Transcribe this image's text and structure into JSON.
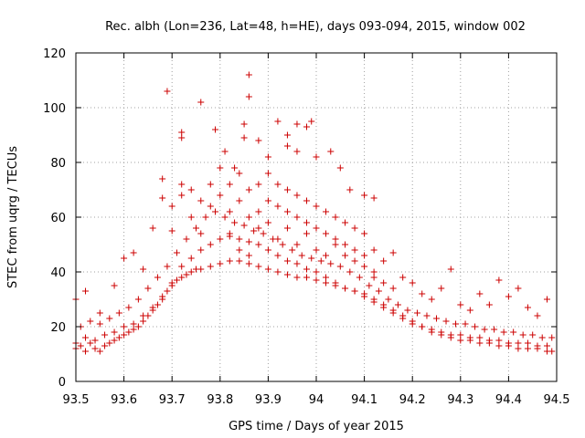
{
  "chart_data": {
    "type": "scatter",
    "title": "Rec. albh (Lon=236, Lat=48, h=HE), days 093-094, 2015, window 002",
    "xlabel": "GPS time / Days of year 2015",
    "ylabel": "STEC from uqrg / TECUs",
    "xlim": [
      93.5,
      94.5
    ],
    "ylim": [
      0,
      120
    ],
    "xticks": [
      "93.5",
      "93.6",
      "93.7",
      "93.8",
      "93.9",
      "94",
      "94.1",
      "94.2",
      "94.3",
      "94.4",
      "94.5"
    ],
    "yticks": [
      "0",
      "20",
      "40",
      "60",
      "80",
      "100",
      "120"
    ],
    "grid": true,
    "marker": "+",
    "marker_color": "#cc0000",
    "legend": "none",
    "series": [
      {
        "name": "STEC",
        "points": [
          [
            93.5,
            12
          ],
          [
            93.51,
            13
          ],
          [
            93.52,
            11
          ],
          [
            93.53,
            14
          ],
          [
            93.54,
            12
          ],
          [
            93.55,
            11
          ],
          [
            93.56,
            13
          ],
          [
            93.57,
            14
          ],
          [
            93.58,
            15
          ],
          [
            93.59,
            16
          ],
          [
            93.6,
            17
          ],
          [
            93.61,
            18
          ],
          [
            93.62,
            19
          ],
          [
            93.63,
            20
          ],
          [
            93.64,
            22
          ],
          [
            93.65,
            24
          ],
          [
            93.66,
            26
          ],
          [
            93.67,
            28
          ],
          [
            93.68,
            30
          ],
          [
            93.69,
            33
          ],
          [
            93.7,
            35
          ],
          [
            93.71,
            37
          ],
          [
            93.72,
            38
          ],
          [
            93.73,
            39
          ],
          [
            93.74,
            40
          ],
          [
            93.75,
            41
          ],
          [
            93.76,
            41
          ],
          [
            93.78,
            42
          ],
          [
            93.8,
            43
          ],
          [
            93.82,
            44
          ],
          [
            93.84,
            44
          ],
          [
            93.86,
            43
          ],
          [
            93.88,
            42
          ],
          [
            93.9,
            41
          ],
          [
            93.92,
            40
          ],
          [
            93.94,
            39
          ],
          [
            93.96,
            38
          ],
          [
            93.98,
            38
          ],
          [
            94.0,
            37
          ],
          [
            94.02,
            36
          ],
          [
            94.04,
            35
          ],
          [
            94.06,
            34
          ],
          [
            94.08,
            33
          ],
          [
            94.1,
            32
          ],
          [
            94.12,
            30
          ],
          [
            94.14,
            28
          ],
          [
            94.16,
            26
          ],
          [
            94.18,
            24
          ],
          [
            94.2,
            22
          ],
          [
            94.22,
            20
          ],
          [
            94.24,
            18
          ],
          [
            94.26,
            17
          ],
          [
            94.28,
            16
          ],
          [
            94.3,
            15
          ],
          [
            94.32,
            15
          ],
          [
            94.34,
            14
          ],
          [
            94.36,
            14
          ],
          [
            94.38,
            13
          ],
          [
            94.4,
            13
          ],
          [
            94.42,
            12
          ],
          [
            94.44,
            12
          ],
          [
            94.46,
            12
          ],
          [
            94.48,
            11
          ],
          [
            94.49,
            11
          ],
          [
            93.5,
            14
          ],
          [
            93.52,
            16
          ],
          [
            93.54,
            15
          ],
          [
            93.56,
            17
          ],
          [
            93.58,
            18
          ],
          [
            93.6,
            20
          ],
          [
            93.62,
            21
          ],
          [
            93.64,
            24
          ],
          [
            93.66,
            27
          ],
          [
            93.68,
            31
          ],
          [
            93.7,
            36
          ],
          [
            93.72,
            42
          ],
          [
            93.74,
            45
          ],
          [
            93.76,
            48
          ],
          [
            93.78,
            50
          ],
          [
            93.8,
            52
          ],
          [
            93.82,
            53
          ],
          [
            93.84,
            52
          ],
          [
            93.86,
            51
          ],
          [
            93.88,
            50
          ],
          [
            93.9,
            48
          ],
          [
            93.92,
            46
          ],
          [
            93.94,
            44
          ],
          [
            93.96,
            43
          ],
          [
            93.98,
            41
          ],
          [
            94.0,
            40
          ],
          [
            94.02,
            38
          ],
          [
            94.04,
            36
          ],
          [
            94.06,
            34
          ],
          [
            94.08,
            33
          ],
          [
            94.1,
            31
          ],
          [
            94.12,
            29
          ],
          [
            94.14,
            27
          ],
          [
            94.16,
            25
          ],
          [
            94.18,
            23
          ],
          [
            94.2,
            21
          ],
          [
            94.22,
            20
          ],
          [
            94.24,
            19
          ],
          [
            94.26,
            18
          ],
          [
            94.28,
            17
          ],
          [
            94.3,
            17
          ],
          [
            94.32,
            16
          ],
          [
            94.34,
            16
          ],
          [
            94.36,
            15
          ],
          [
            94.38,
            15
          ],
          [
            94.4,
            14
          ],
          [
            94.42,
            14
          ],
          [
            94.44,
            14
          ],
          [
            94.46,
            13
          ],
          [
            94.48,
            13
          ],
          [
            93.51,
            20
          ],
          [
            93.53,
            22
          ],
          [
            93.55,
            21
          ],
          [
            93.57,
            23
          ],
          [
            93.59,
            25
          ],
          [
            93.61,
            27
          ],
          [
            93.63,
            30
          ],
          [
            93.65,
            34
          ],
          [
            93.67,
            38
          ],
          [
            93.69,
            42
          ],
          [
            93.71,
            47
          ],
          [
            93.73,
            52
          ],
          [
            93.75,
            56
          ],
          [
            93.77,
            60
          ],
          [
            93.79,
            62
          ],
          [
            93.81,
            60
          ],
          [
            93.83,
            58
          ],
          [
            93.85,
            57
          ],
          [
            93.87,
            55
          ],
          [
            93.89,
            54
          ],
          [
            93.91,
            52
          ],
          [
            93.93,
            50
          ],
          [
            93.95,
            48
          ],
          [
            93.97,
            46
          ],
          [
            93.99,
            45
          ],
          [
            94.01,
            44
          ],
          [
            94.03,
            43
          ],
          [
            94.05,
            42
          ],
          [
            94.07,
            40
          ],
          [
            94.09,
            38
          ],
          [
            94.11,
            35
          ],
          [
            94.13,
            33
          ],
          [
            94.15,
            30
          ],
          [
            94.17,
            28
          ],
          [
            94.19,
            26
          ],
          [
            94.21,
            25
          ],
          [
            94.23,
            24
          ],
          [
            94.25,
            23
          ],
          [
            94.27,
            22
          ],
          [
            94.29,
            21
          ],
          [
            94.31,
            21
          ],
          [
            94.33,
            20
          ],
          [
            94.35,
            19
          ],
          [
            94.37,
            19
          ],
          [
            94.39,
            18
          ],
          [
            94.41,
            18
          ],
          [
            94.43,
            17
          ],
          [
            94.45,
            17
          ],
          [
            94.47,
            16
          ],
          [
            94.49,
            16
          ],
          [
            93.5,
            30
          ],
          [
            93.52,
            33
          ],
          [
            93.55,
            25
          ],
          [
            93.58,
            35
          ],
          [
            93.6,
            45
          ],
          [
            93.62,
            47
          ],
          [
            93.64,
            41
          ],
          [
            93.66,
            56
          ],
          [
            93.68,
            67
          ],
          [
            93.68,
            74
          ],
          [
            93.7,
            64
          ],
          [
            93.7,
            55
          ],
          [
            93.72,
            72
          ],
          [
            93.72,
            68
          ],
          [
            93.74,
            70
          ],
          [
            93.74,
            60
          ],
          [
            93.76,
            66
          ],
          [
            93.76,
            54
          ],
          [
            93.78,
            72
          ],
          [
            93.78,
            64
          ],
          [
            93.8,
            78
          ],
          [
            93.8,
            68
          ],
          [
            93.82,
            72
          ],
          [
            93.82,
            62
          ],
          [
            93.84,
            76
          ],
          [
            93.84,
            66
          ],
          [
            93.86,
            70
          ],
          [
            93.86,
            60
          ],
          [
            93.88,
            72
          ],
          [
            93.88,
            62
          ],
          [
            93.9,
            76
          ],
          [
            93.9,
            66
          ],
          [
            93.92,
            72
          ],
          [
            93.92,
            64
          ],
          [
            93.94,
            70
          ],
          [
            93.94,
            62
          ],
          [
            93.96,
            68
          ],
          [
            93.96,
            60
          ],
          [
            93.98,
            66
          ],
          [
            93.98,
            58
          ],
          [
            94.0,
            64
          ],
          [
            94.0,
            56
          ],
          [
            94.02,
            62
          ],
          [
            94.02,
            54
          ],
          [
            94.04,
            60
          ],
          [
            94.04,
            52
          ],
          [
            94.06,
            58
          ],
          [
            94.06,
            50
          ],
          [
            94.08,
            56
          ],
          [
            94.08,
            48
          ],
          [
            94.1,
            54
          ],
          [
            94.1,
            46
          ],
          [
            94.12,
            48
          ],
          [
            94.12,
            40
          ],
          [
            94.14,
            44
          ],
          [
            94.16,
            47
          ],
          [
            94.18,
            38
          ],
          [
            94.2,
            36
          ],
          [
            94.22,
            32
          ],
          [
            94.24,
            30
          ],
          [
            94.26,
            34
          ],
          [
            94.28,
            41
          ],
          [
            94.3,
            28
          ],
          [
            94.32,
            26
          ],
          [
            94.34,
            32
          ],
          [
            94.36,
            28
          ],
          [
            94.38,
            37
          ],
          [
            94.4,
            31
          ],
          [
            94.42,
            34
          ],
          [
            94.44,
            27
          ],
          [
            94.46,
            24
          ],
          [
            94.48,
            30
          ],
          [
            93.69,
            106
          ],
          [
            93.72,
            91
          ],
          [
            93.72,
            89
          ],
          [
            93.76,
            102
          ],
          [
            93.79,
            92
          ],
          [
            93.81,
            84
          ],
          [
            93.83,
            78
          ],
          [
            93.85,
            94
          ],
          [
            93.85,
            89
          ],
          [
            93.86,
            112
          ],
          [
            93.86,
            104
          ],
          [
            93.88,
            88
          ],
          [
            93.9,
            82
          ],
          [
            93.92,
            95
          ],
          [
            93.94,
            90
          ],
          [
            93.94,
            86
          ],
          [
            93.96,
            94
          ],
          [
            93.96,
            84
          ],
          [
            93.98,
            93
          ],
          [
            93.99,
            95
          ],
          [
            94.0,
            82
          ],
          [
            94.03,
            84
          ],
          [
            94.05,
            78
          ],
          [
            94.07,
            70
          ],
          [
            94.1,
            68
          ],
          [
            94.12,
            67
          ],
          [
            93.82,
            54
          ],
          [
            93.84,
            48
          ],
          [
            93.86,
            46
          ],
          [
            93.88,
            56
          ],
          [
            93.9,
            58
          ],
          [
            93.92,
            52
          ],
          [
            93.94,
            56
          ],
          [
            93.96,
            50
          ],
          [
            93.98,
            54
          ],
          [
            94.0,
            48
          ],
          [
            94.02,
            46
          ],
          [
            94.04,
            50
          ],
          [
            94.06,
            46
          ],
          [
            94.08,
            44
          ],
          [
            94.1,
            42
          ],
          [
            94.12,
            38
          ],
          [
            94.14,
            36
          ],
          [
            94.16,
            34
          ]
        ]
      }
    ]
  }
}
